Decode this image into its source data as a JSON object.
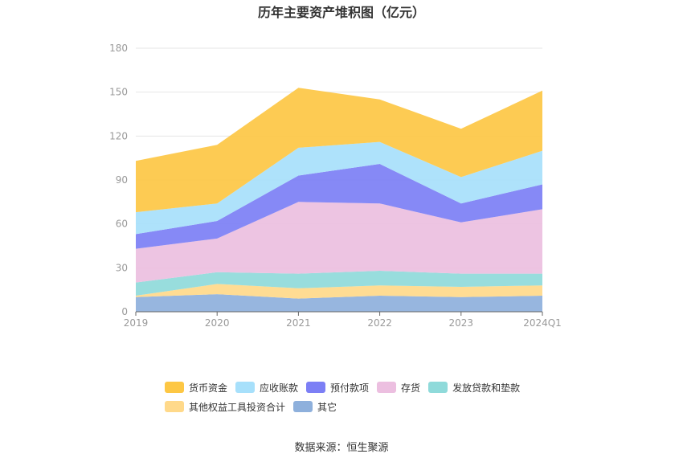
{
  "chart_data": {
    "type": "area",
    "stacked": true,
    "title": "历年主要资产堆积图（亿元）",
    "categories": [
      "2019",
      "2020",
      "2021",
      "2022",
      "2023",
      "2024Q1"
    ],
    "y_ticks": [
      "0",
      "30",
      "60",
      "90",
      "120",
      "150",
      "180"
    ],
    "ylim": [
      0,
      180
    ],
    "grid": true,
    "legend_position": "bottom",
    "series": [
      {
        "name": "其它",
        "color": "#8eb0dc",
        "values": [
          10,
          12,
          9,
          11,
          10,
          11
        ]
      },
      {
        "name": "其他权益工具投资合计",
        "color": "#ffd98a",
        "values": [
          1,
          7,
          7,
          7,
          7,
          7
        ]
      },
      {
        "name": "发放贷款和垫款",
        "color": "#8fdada",
        "values": [
          9,
          8,
          10,
          10,
          9,
          8
        ]
      },
      {
        "name": "存货",
        "color": "#ecbfe0",
        "values": [
          23,
          23,
          49,
          46,
          35,
          44
        ]
      },
      {
        "name": "预付款项",
        "color": "#7c7ff5",
        "values": [
          10,
          12,
          18,
          27,
          13,
          17
        ]
      },
      {
        "name": "应收账款",
        "color": "#a7e0fb",
        "values": [
          15,
          12,
          19,
          15,
          18,
          23
        ]
      },
      {
        "name": "货币资金",
        "color": "#fdc744",
        "values": [
          35,
          40,
          41,
          29,
          33,
          41
        ]
      }
    ]
  },
  "legend": {
    "row1": [
      {
        "label": "货币资金",
        "color": "#fdc744"
      },
      {
        "label": "应收账款",
        "color": "#a7e0fb"
      },
      {
        "label": "预付款项",
        "color": "#7c7ff5"
      },
      {
        "label": "存货",
        "color": "#ecbfe0"
      },
      {
        "label": "发放贷款和垫款",
        "color": "#8fdada"
      }
    ],
    "row2": [
      {
        "label": "其他权益工具投资合计",
        "color": "#ffd98a"
      },
      {
        "label": "其它",
        "color": "#8eb0dc"
      }
    ]
  },
  "source": "数据来源：恒生聚源"
}
